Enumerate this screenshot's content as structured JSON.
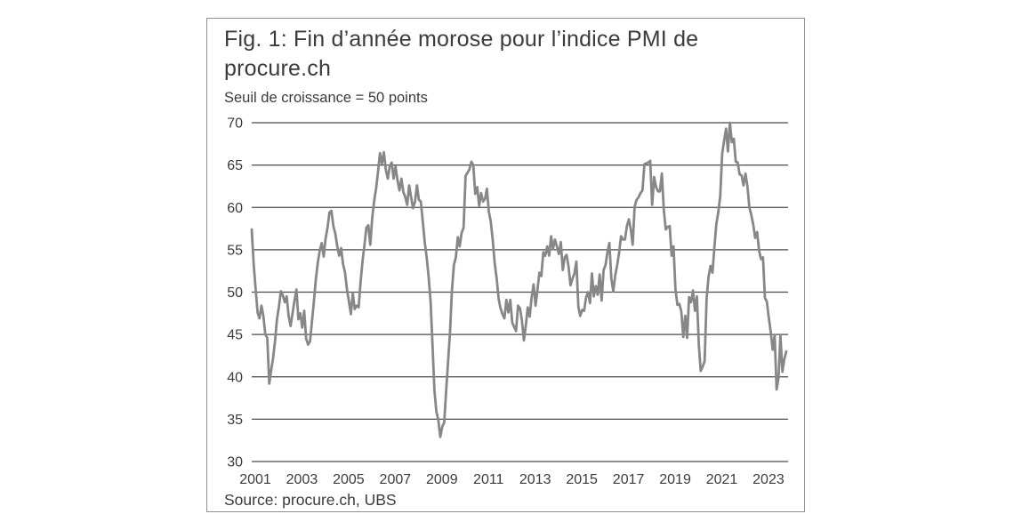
{
  "figure": {
    "title_line1": "Fig. 1: Fin d’année morose pour l’indice PMI de",
    "title_line2": "procure.ch",
    "subtitle": "Seuil de croissance = 50 points",
    "source": "Source: procure.ch, UBS"
  },
  "colors": {
    "line": "#878787",
    "grid": "#4a4a4a",
    "border": "#909090",
    "text": "#3b3b3b",
    "background": "#ffffff"
  },
  "chart_data": {
    "type": "line",
    "title": "Fig. 1: Fin d’année morose pour l’indice PMI de procure.ch",
    "subtitle": "Seuil de croissance = 50 points",
    "source": "Source: procure.ch, UBS",
    "series_name": "Indice PMI procure.ch",
    "frequency": "monthly",
    "x_start_year": 2001,
    "x_end_year": 2023,
    "x_tick_labels": [
      "2001",
      "2003",
      "2005",
      "2007",
      "2009",
      "2011",
      "2013",
      "2015",
      "2017",
      "2019",
      "2021",
      "2023"
    ],
    "y_ticks": [
      30,
      35,
      40,
      45,
      50,
      55,
      60,
      65,
      70
    ],
    "ylim": [
      30,
      70
    ],
    "growth_threshold": 50,
    "grid": "horizontal",
    "legend": "none",
    "values": [
      57.4,
      53.3,
      50.4,
      47.6,
      46.9,
      48.4,
      47.2,
      45.0,
      44.6,
      39.2,
      40.8,
      42.2,
      44.2,
      46.8,
      48.3,
      50.1,
      49.6,
      48.8,
      49.5,
      47.2,
      46.0,
      47.5,
      49.0,
      50.3,
      46.8,
      47.5,
      45.8,
      47.8,
      44.5,
      43.8,
      44.2,
      46.5,
      48.9,
      51.5,
      53.5,
      54.9,
      55.8,
      54.2,
      56.3,
      57.6,
      59.4,
      59.6,
      57.8,
      56.9,
      55.4,
      54.3,
      55.2,
      53.3,
      52.3,
      50.3,
      48.9,
      47.4,
      49.9,
      48.0,
      48.4,
      48.2,
      51.2,
      53.7,
      55.6,
      57.6,
      57.9,
      55.6,
      58.8,
      60.8,
      62.3,
      64.3,
      66.4,
      65.2,
      66.5,
      64.4,
      63.4,
      64.9,
      65.3,
      63.4,
      64.8,
      63.2,
      62.0,
      63.4,
      61.8,
      61.2,
      60.3,
      62.6,
      61.2,
      59.9,
      60.7,
      62.6,
      60.9,
      60.7,
      58.4,
      55.9,
      54.1,
      51.8,
      48.9,
      43.9,
      38.4,
      35.9,
      34.9,
      32.9,
      34.1,
      34.6,
      38.2,
      41.7,
      45.2,
      50.2,
      53.2,
      54.1,
      56.5,
      55.4,
      57.0,
      57.6,
      63.7,
      64.1,
      64.5,
      65.4,
      65.0,
      61.6,
      62.4,
      60.2,
      61.7,
      60.7,
      61.0,
      62.2,
      59.5,
      58.3,
      56.1,
      53.4,
      51.6,
      49.2,
      48.1,
      47.4,
      46.9,
      49.1,
      47.6,
      49.1,
      46.4,
      45.9,
      45.4,
      48.4,
      48.1,
      46.6,
      44.3,
      46.0,
      48.2,
      47.1,
      49.4,
      50.9,
      48.4,
      50.3,
      52.3,
      51.9,
      54.7,
      54.3,
      55.4,
      54.3,
      56.6,
      55.1,
      56.2,
      55.4,
      54.5,
      55.9,
      52.6,
      54.1,
      54.4,
      53.0,
      50.8,
      51.6,
      52.2,
      53.6,
      48.3,
      47.2,
      47.9,
      47.8,
      49.4,
      50.0,
      48.7,
      52.2,
      49.5,
      50.7,
      49.7,
      52.1,
      49.0,
      52.6,
      53.2,
      54.7,
      55.8,
      51.6,
      50.1,
      52.0,
      53.2,
      54.7,
      56.6,
      56.2,
      56.2,
      57.8,
      58.6,
      57.4,
      55.6,
      60.1,
      60.9,
      61.2,
      61.7,
      62.0,
      65.1,
      65.2,
      65.3,
      65.5,
      60.3,
      63.6,
      62.4,
      61.9,
      61.9,
      64.0,
      59.7,
      57.4,
      57.7,
      57.8,
      54.3,
      55.4,
      50.3,
      48.5,
      48.6,
      47.7,
      44.7,
      47.2,
      44.6,
      49.4,
      48.8,
      50.2,
      47.8,
      49.5,
      43.7,
      40.7,
      41.2,
      41.9,
      49.2,
      51.8,
      53.1,
      52.3,
      55.2,
      58.0,
      59.4,
      61.3,
      66.3,
      67.9,
      69.3,
      66.6,
      70.0,
      67.7,
      68.1,
      65.4,
      65.3,
      63.9,
      63.8,
      62.6,
      64.0,
      62.5,
      60.0,
      59.1,
      58.0,
      56.4,
      57.1,
      54.9,
      53.9,
      54.1,
      49.3,
      48.9,
      47.0,
      45.3,
      43.2,
      44.9,
      38.5,
      39.9,
      44.9,
      40.6,
      42.1,
      43.0
    ]
  }
}
